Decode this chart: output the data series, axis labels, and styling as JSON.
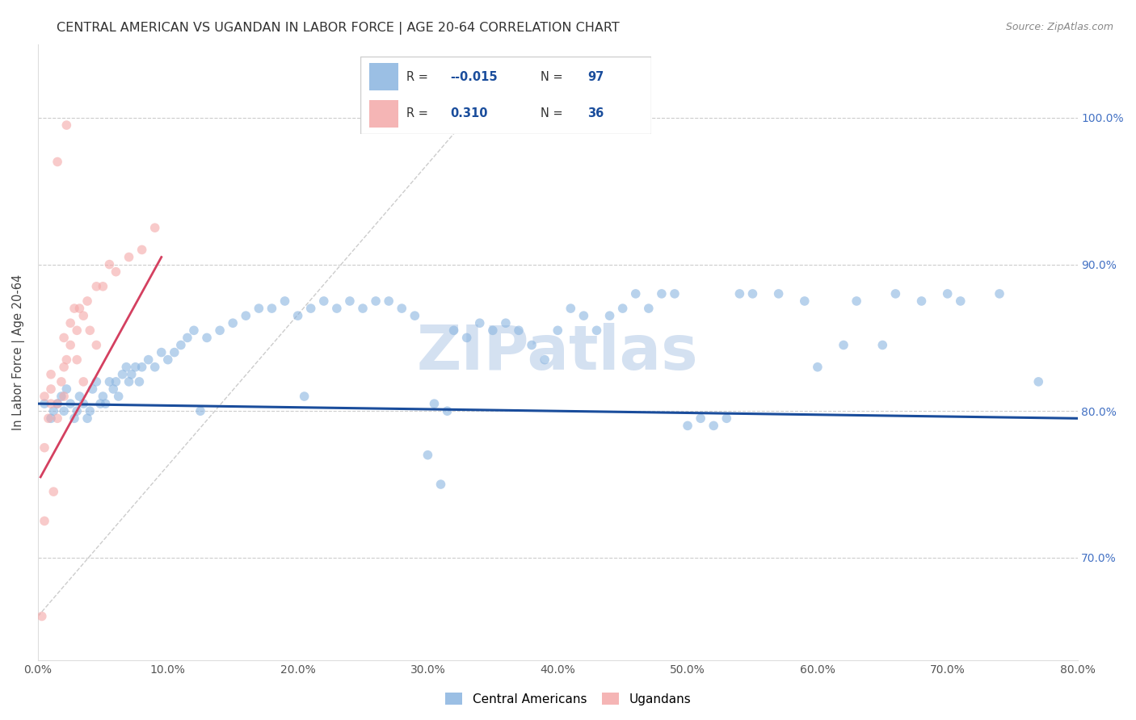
{
  "title": "CENTRAL AMERICAN VS UGANDAN IN LABOR FORCE | AGE 20-64 CORRELATION CHART",
  "source": "Source: ZipAtlas.com",
  "ylabel": "In Labor Force | Age 20-64",
  "x_tick_values": [
    0,
    10,
    20,
    30,
    40,
    50,
    60,
    70,
    80
  ],
  "y_tick_values": [
    70,
    80,
    90,
    100
  ],
  "xlim": [
    0,
    80
  ],
  "ylim": [
    63,
    105
  ],
  "blue_color": "#8ab4e0",
  "pink_color": "#f4a8a8",
  "blue_line_color": "#1a4d9c",
  "pink_line_color": "#d44060",
  "blue_scatter_alpha": 0.6,
  "pink_scatter_alpha": 0.6,
  "marker_size": 70,
  "blue_points_x": [
    0.5,
    1.0,
    1.2,
    1.5,
    1.8,
    2.0,
    2.2,
    2.5,
    2.8,
    3.0,
    3.2,
    3.5,
    3.8,
    4.0,
    4.2,
    4.5,
    4.8,
    5.0,
    5.2,
    5.5,
    5.8,
    6.0,
    6.2,
    6.5,
    6.8,
    7.0,
    7.2,
    7.5,
    7.8,
    8.0,
    8.5,
    9.0,
    9.5,
    10.0,
    10.5,
    11.0,
    11.5,
    12.0,
    13.0,
    14.0,
    15.0,
    16.0,
    17.0,
    18.0,
    19.0,
    20.0,
    21.0,
    22.0,
    23.0,
    24.0,
    25.0,
    26.0,
    27.0,
    28.0,
    29.0,
    30.0,
    31.0,
    32.0,
    33.0,
    34.0,
    35.0,
    36.0,
    37.0,
    38.0,
    39.0,
    40.0,
    41.0,
    42.0,
    43.0,
    44.0,
    45.0,
    47.0,
    49.0,
    51.0,
    53.0,
    55.0,
    57.0,
    59.0,
    62.0,
    65.0,
    68.0,
    71.0,
    74.0,
    77.0,
    50.0,
    52.0,
    54.0,
    46.0,
    48.0,
    60.0,
    63.0,
    66.0,
    70.0,
    30.5,
    31.5,
    20.5,
    12.5
  ],
  "blue_points_y": [
    80.5,
    79.5,
    80.0,
    80.5,
    81.0,
    80.0,
    81.5,
    80.5,
    79.5,
    80.0,
    81.0,
    80.5,
    79.5,
    80.0,
    81.5,
    82.0,
    80.5,
    81.0,
    80.5,
    82.0,
    81.5,
    82.0,
    81.0,
    82.5,
    83.0,
    82.0,
    82.5,
    83.0,
    82.0,
    83.0,
    83.5,
    83.0,
    84.0,
    83.5,
    84.0,
    84.5,
    85.0,
    85.5,
    85.0,
    85.5,
    86.0,
    86.5,
    87.0,
    87.0,
    87.5,
    86.5,
    87.0,
    87.5,
    87.0,
    87.5,
    87.0,
    87.5,
    87.5,
    87.0,
    86.5,
    77.0,
    75.0,
    85.5,
    85.0,
    86.0,
    85.5,
    86.0,
    85.5,
    84.5,
    83.5,
    85.5,
    87.0,
    86.5,
    85.5,
    86.5,
    87.0,
    87.0,
    88.0,
    79.5,
    79.5,
    88.0,
    88.0,
    87.5,
    84.5,
    84.5,
    87.5,
    87.5,
    88.0,
    82.0,
    79.0,
    79.0,
    88.0,
    88.0,
    88.0,
    83.0,
    87.5,
    88.0,
    88.0,
    80.5,
    80.0,
    81.0,
    80.0
  ],
  "pink_points_x": [
    0.3,
    0.5,
    0.5,
    0.5,
    0.8,
    1.0,
    1.0,
    1.0,
    1.2,
    1.5,
    1.5,
    1.8,
    2.0,
    2.0,
    2.0,
    2.2,
    2.5,
    2.5,
    2.8,
    3.0,
    3.0,
    3.2,
    3.5,
    3.8,
    4.0,
    4.5,
    5.0,
    5.5,
    6.0,
    7.0,
    8.0,
    9.0,
    1.5,
    2.2,
    4.5,
    3.5
  ],
  "pink_points_y": [
    66.0,
    72.5,
    77.5,
    81.0,
    79.5,
    80.5,
    81.5,
    82.5,
    74.5,
    79.5,
    80.5,
    82.0,
    81.0,
    83.0,
    85.0,
    83.5,
    84.5,
    86.0,
    87.0,
    83.5,
    85.5,
    87.0,
    86.5,
    87.5,
    85.5,
    88.5,
    88.5,
    90.0,
    89.5,
    90.5,
    91.0,
    92.5,
    97.0,
    99.5,
    84.5,
    82.0
  ],
  "blue_trend_x": [
    0,
    80
  ],
  "blue_trend_y": [
    80.5,
    79.5
  ],
  "pink_trend_x": [
    0.2,
    9.5
  ],
  "pink_trend_y": [
    75.5,
    90.5
  ],
  "diag_x1": 0,
  "diag_y1": 66,
  "diag_x2": 35,
  "diag_y2": 102,
  "watermark": "ZIPatlas",
  "watermark_color": "#cddcef",
  "watermark_fontsize": 55,
  "footer_labels": [
    "Central Americans",
    "Ugandans"
  ],
  "title_fontsize": 11.5,
  "axis_label_fontsize": 10.5,
  "tick_fontsize": 10,
  "right_tick_color": "#4472c4",
  "legend_blue_r": "-0.015",
  "legend_blue_n": "97",
  "legend_pink_r": "0.310",
  "legend_pink_n": "36"
}
